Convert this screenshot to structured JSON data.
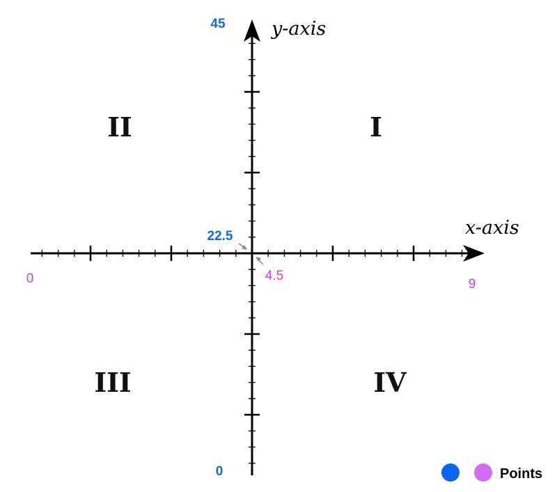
{
  "axes": {
    "x_title": "x-axis",
    "y_title": "y-axis",
    "x_min_label": "0",
    "x_mid_label": "4.5",
    "x_max_label": "9",
    "y_min_label": "0",
    "y_mid_label": "22.5",
    "y_max_label": "45",
    "x_range": [
      0,
      9
    ],
    "y_range": [
      0,
      45
    ]
  },
  "quadrants": {
    "q1": "I",
    "q2": "II",
    "q3": "III",
    "q4": "IV"
  },
  "legend": {
    "label": "Points"
  },
  "colors": {
    "blue": "#1569e0",
    "magenta": "#c83ee0",
    "legend_blue": "#0a66f0",
    "legend_magenta": "#d36cf0",
    "arrow_gray": "#888888"
  }
}
